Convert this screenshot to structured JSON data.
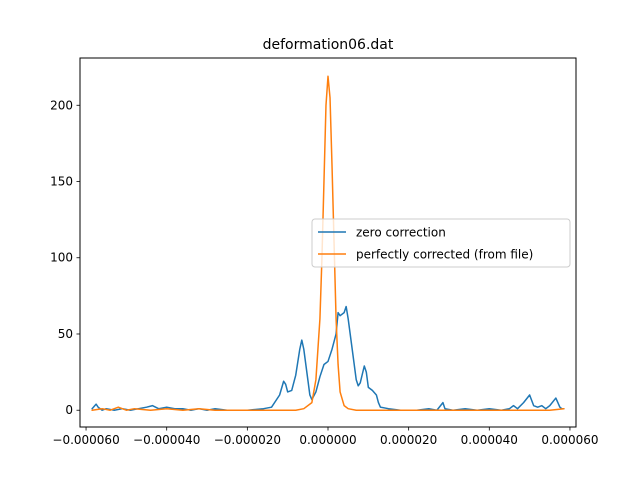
{
  "chart_data": {
    "type": "line",
    "title": "deformation06.dat",
    "xlabel": "",
    "ylabel": "",
    "xlim": [
      -6.15e-05,
      6.15e-05
    ],
    "ylim": [
      -11,
      231
    ],
    "xticks": [
      -6e-05,
      -4e-05,
      -2e-05,
      0.0,
      2e-05,
      4e-05,
      6e-05
    ],
    "xtick_labels": [
      "−0.000060",
      "−0.000040",
      "−0.000020",
      "0.000000",
      "0.000020",
      "0.000040",
      "0.000060"
    ],
    "yticks": [
      0,
      50,
      100,
      150,
      200
    ],
    "ytick_labels": [
      "0",
      "50",
      "100",
      "150",
      "200"
    ],
    "grid": false,
    "legend_position": "center-right",
    "series": [
      {
        "name": "zero correction",
        "color": "#1f77b4",
        "points": [
          [
            -5.85e-05,
            1
          ],
          [
            -5.75e-05,
            4
          ],
          [
            -5.7e-05,
            2
          ],
          [
            -5.6e-05,
            0
          ],
          [
            -5.5e-05,
            1
          ],
          [
            -5.3e-05,
            0
          ],
          [
            -5.1e-05,
            1
          ],
          [
            -4.9e-05,
            0
          ],
          [
            -4.7e-05,
            1
          ],
          [
            -4.5e-05,
            2
          ],
          [
            -4.35e-05,
            3
          ],
          [
            -4.2e-05,
            1
          ],
          [
            -4e-05,
            2
          ],
          [
            -3.8e-05,
            1
          ],
          [
            -3.6e-05,
            1
          ],
          [
            -3.4e-05,
            0
          ],
          [
            -3.2e-05,
            1
          ],
          [
            -3e-05,
            0
          ],
          [
            -2.8e-05,
            1
          ],
          [
            -2.5e-05,
            0
          ],
          [
            -2e-05,
            0
          ],
          [
            -1.6e-05,
            1
          ],
          [
            -1.4e-05,
            2
          ],
          [
            -1.2e-05,
            10
          ],
          [
            -1.1e-05,
            19
          ],
          [
            -1.05e-05,
            17
          ],
          [
            -1e-05,
            12
          ],
          [
            -9e-06,
            13
          ],
          [
            -8e-06,
            23
          ],
          [
            -7e-06,
            40
          ],
          [
            -6.5e-06,
            46
          ],
          [
            -6e-06,
            40
          ],
          [
            -5e-06,
            20
          ],
          [
            -4.5e-06,
            10
          ],
          [
            -4e-06,
            7
          ],
          [
            -3e-06,
            12
          ],
          [
            -2e-06,
            22
          ],
          [
            -1e-06,
            30
          ],
          [
            0.0,
            32
          ],
          [
            1e-06,
            40
          ],
          [
            2e-06,
            50
          ],
          [
            2.5e-06,
            64
          ],
          [
            3e-06,
            62
          ],
          [
            4e-06,
            64
          ],
          [
            4.5e-06,
            68
          ],
          [
            5e-06,
            60
          ],
          [
            6e-06,
            40
          ],
          [
            7e-06,
            20
          ],
          [
            7.5e-06,
            16
          ],
          [
            8e-06,
            18
          ],
          [
            9e-06,
            29
          ],
          [
            9.5e-06,
            25
          ],
          [
            1e-05,
            15
          ],
          [
            1.1e-05,
            13
          ],
          [
            1.2e-05,
            10
          ],
          [
            1.25e-05,
            5
          ],
          [
            1.3e-05,
            2
          ],
          [
            1.5e-05,
            1
          ],
          [
            1.8e-05,
            0
          ],
          [
            2.2e-05,
            0
          ],
          [
            2.5e-05,
            1
          ],
          [
            2.7e-05,
            0
          ],
          [
            2.85e-05,
            5
          ],
          [
            2.9e-05,
            1
          ],
          [
            3.1e-05,
            0
          ],
          [
            3.4e-05,
            1
          ],
          [
            3.7e-05,
            0
          ],
          [
            4e-05,
            1
          ],
          [
            4.3e-05,
            0
          ],
          [
            4.5e-05,
            1
          ],
          [
            4.6e-05,
            3
          ],
          [
            4.7e-05,
            1
          ],
          [
            4.85e-05,
            5
          ],
          [
            5e-05,
            10
          ],
          [
            5.1e-05,
            3
          ],
          [
            5.2e-05,
            2
          ],
          [
            5.3e-05,
            3
          ],
          [
            5.4e-05,
            1
          ],
          [
            5.5e-05,
            3
          ],
          [
            5.65e-05,
            8
          ],
          [
            5.7e-05,
            5
          ],
          [
            5.75e-05,
            2
          ],
          [
            5.8e-05,
            1
          ],
          [
            5.85e-05,
            1
          ]
        ]
      },
      {
        "name": "perfectly corrected (from file)",
        "color": "#ff7f0e",
        "points": [
          [
            -5.85e-05,
            0
          ],
          [
            -5.6e-05,
            1
          ],
          [
            -5.4e-05,
            0
          ],
          [
            -5.2e-05,
            2
          ],
          [
            -5e-05,
            0
          ],
          [
            -4.8e-05,
            1
          ],
          [
            -4.4e-05,
            0
          ],
          [
            -4e-05,
            1
          ],
          [
            -3.6e-05,
            0
          ],
          [
            -3.2e-05,
            1
          ],
          [
            -2.8e-05,
            0
          ],
          [
            -2.4e-05,
            0
          ],
          [
            -2e-05,
            0
          ],
          [
            -1.6e-05,
            0
          ],
          [
            -1.2e-05,
            0
          ],
          [
            -8e-06,
            0
          ],
          [
            -6e-06,
            1
          ],
          [
            -4e-06,
            5
          ],
          [
            -3e-06,
            20
          ],
          [
            -2e-06,
            60
          ],
          [
            -1.5e-06,
            100
          ],
          [
            -1e-06,
            150
          ],
          [
            -5e-07,
            200
          ],
          [
            0.0,
            219
          ],
          [
            5e-07,
            205
          ],
          [
            1e-06,
            160
          ],
          [
            1.5e-06,
            110
          ],
          [
            2e-06,
            60
          ],
          [
            2.5e-06,
            30
          ],
          [
            3e-06,
            12
          ],
          [
            4e-06,
            3
          ],
          [
            5e-06,
            1
          ],
          [
            7e-06,
            0
          ],
          [
            1e-05,
            0
          ],
          [
            1.5e-05,
            0
          ],
          [
            2e-05,
            0
          ],
          [
            2.5e-05,
            0
          ],
          [
            3e-05,
            0
          ],
          [
            3.5e-05,
            0
          ],
          [
            4e-05,
            0
          ],
          [
            4.5e-05,
            0
          ],
          [
            5e-05,
            0
          ],
          [
            5.5e-05,
            0
          ],
          [
            5.85e-05,
            1
          ]
        ]
      }
    ]
  }
}
